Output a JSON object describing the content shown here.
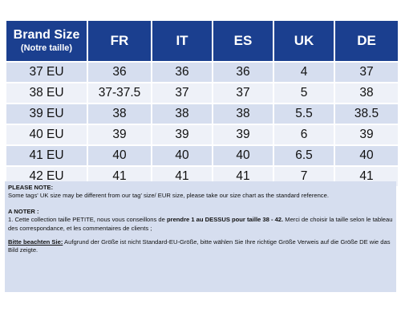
{
  "table": {
    "header": {
      "brand_main": "Brand Size",
      "brand_sub": "(Notre taille)",
      "cols": [
        "FR",
        "IT",
        "ES",
        "UK",
        "DE"
      ]
    },
    "rows": [
      {
        "brand": "37 EU",
        "values": [
          "36",
          "36",
          "36",
          "4",
          "37"
        ]
      },
      {
        "brand": "38 EU",
        "values": [
          "37-37.5",
          "37",
          "37",
          "5",
          "38"
        ]
      },
      {
        "brand": "39 EU",
        "values": [
          "38",
          "38",
          "38",
          "5.5",
          "38.5"
        ]
      },
      {
        "brand": "40 EU",
        "values": [
          "39",
          "39",
          "39",
          "6",
          "39"
        ]
      },
      {
        "brand": "41 EU",
        "values": [
          "40",
          "40",
          "40",
          "6.5",
          "40"
        ]
      },
      {
        "brand": "42 EU",
        "values": [
          "41",
          "41",
          "41",
          "7",
          "41"
        ]
      }
    ]
  },
  "notes": {
    "en_heading": "PLEASE NOTE:",
    "en_text": "Some tags' UK size  may be different from our tag' size/ EUR size, please take our size chart as the standard reference.",
    "fr_heading": "A NOTER :",
    "fr_text_1": "1. Cette collection taille PETITE, nous vous conseillons de ",
    "fr_text_bold": "prendre 1 au DESSUS pour taille 38 - 42.",
    "fr_text_2": "  Merci de choisir la taille selon le tableau des correspondance, et  les commentaires de clients ;",
    "de_heading": "Bitte beachten Sie:",
    "de_text": " Aufgrund der Größe ist nicht Standard-EU-Größe, bitte wählen Sie Ihre richtige Größe Verweis auf die Größe DE wie das Bild zeigte."
  }
}
